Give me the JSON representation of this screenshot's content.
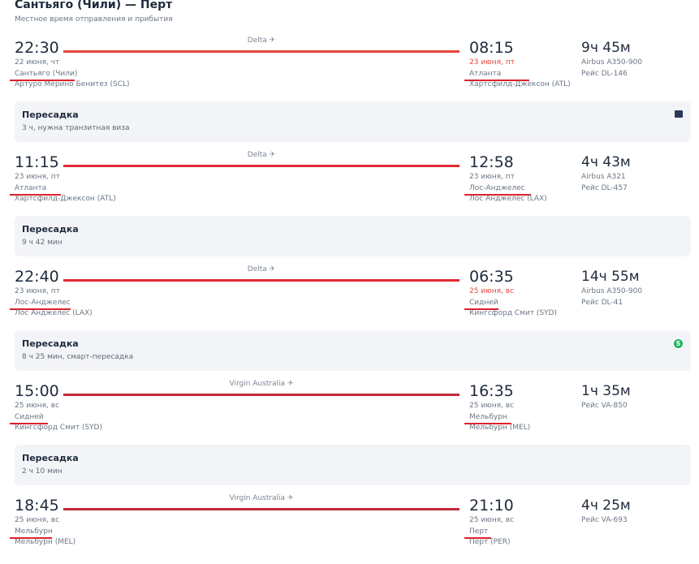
{
  "header": {
    "title": "Сантьяго (Чили) — Перт",
    "subtitle": "Местное время отправления и прибытия"
  },
  "colors": {
    "annotation_line_1": "#e8453c",
    "annotation_line_2": "#e02a35",
    "annotation_line_3": "#c42a3c",
    "red_date": "#e8453c",
    "smart_badge": "#22b35e"
  },
  "segments": [
    {
      "airline": "Delta",
      "dep_time": "22:30",
      "dep_date": "22 июня, чт",
      "dep_city": "Сантьяго (Чили)",
      "dep_airport": "Артуро Мерино Бенитез (SCL)",
      "arr_time": "08:15",
      "arr_date": "23 июня, пт",
      "arr_date_highlight": true,
      "arr_city": "Атланта",
      "arr_airport": "Хартсфилд-Джексон (ATL)",
      "duration": "9ч 45м",
      "aircraft": "Airbus A350-900",
      "flight": "Рейс DL-146"
    },
    {
      "airline": "Delta",
      "dep_time": "11:15",
      "dep_date": "23 июня, пт",
      "dep_city": "Атланта",
      "dep_airport": "Хартсфилд-Джексон (ATL)",
      "arr_time": "12:58",
      "arr_date": "23 июня, пт",
      "arr_date_highlight": false,
      "arr_city": "Лос-Анджелес",
      "arr_airport": "Лос Анджелес (LAX)",
      "duration": "4ч 43м",
      "aircraft": "Airbus A321",
      "flight": "Рейс DL-457"
    },
    {
      "airline": "Delta",
      "dep_time": "22:40",
      "dep_date": "23 июня, пт",
      "dep_city": "Лос-Анджелес",
      "dep_airport": "Лос Анджелес (LAX)",
      "arr_time": "06:35",
      "arr_date": "25 июня, вс",
      "arr_date_highlight": true,
      "arr_city": "Сидней",
      "arr_airport": "Кингсфорд Смит (SYD)",
      "duration": "14ч 55м",
      "aircraft": "Airbus A350-900",
      "flight": "Рейс DL-41"
    },
    {
      "airline": "Virgin Australia",
      "dep_time": "15:00",
      "dep_date": "25 июня, вс",
      "dep_city": "Сидней",
      "dep_airport": "Кингсфорд Смит (SYD)",
      "arr_time": "16:35",
      "arr_date": "25 июня, вс",
      "arr_date_highlight": false,
      "arr_city": "Мельбурн",
      "arr_airport": "Мельбурн (MEL)",
      "duration": "1ч 35м",
      "aircraft": "",
      "flight": "Рейс VA-850"
    },
    {
      "airline": "Virgin Australia",
      "dep_time": "18:45",
      "dep_date": "25 июня, вс",
      "dep_city": "Мельбурн",
      "dep_airport": "Мельбурн (MEL)",
      "arr_time": "21:10",
      "arr_date": "25 июня, вс",
      "arr_date_highlight": false,
      "arr_city": "Перт",
      "arr_airport": "Перт (PER)",
      "duration": "4ч 25м",
      "aircraft": "",
      "flight": "Рейс VA-693"
    }
  ],
  "layovers": [
    {
      "title": "Пересадка",
      "detail": "3 ч, нужна транзитная виза",
      "icon": "visa-book-icon"
    },
    {
      "title": "Пересадка",
      "detail": "9 ч 42 мин",
      "icon": ""
    },
    {
      "title": "Пересадка",
      "detail": "8 ч 25 мин, смарт-пересадка",
      "icon": "smart-s-icon",
      "icon_text": "S"
    },
    {
      "title": "Пересадка",
      "detail": "2 ч 10 мин",
      "icon": ""
    }
  ]
}
